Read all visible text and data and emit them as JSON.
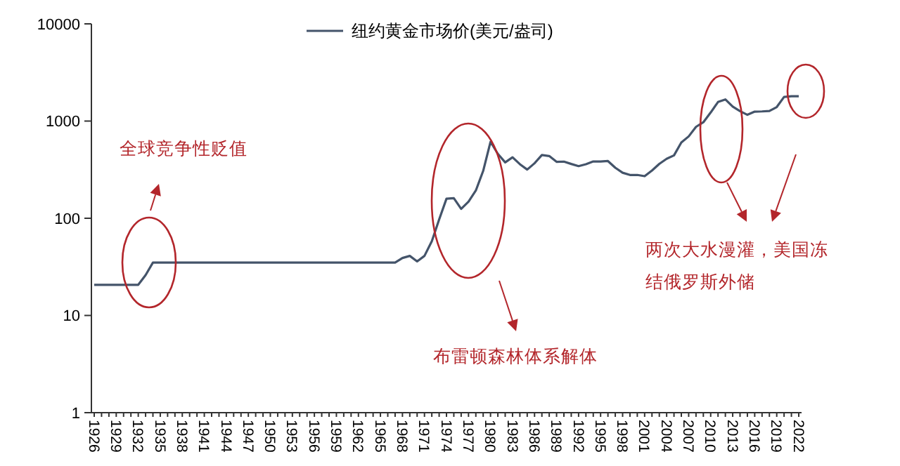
{
  "chart_data": {
    "type": "line",
    "legend": "top",
    "log": true,
    "grid": false,
    "marker": "none",
    "line_style": "solid",
    "xlim": [
      1926,
      2022
    ],
    "xticks": [
      1926,
      1929,
      1932,
      1935,
      1938,
      1941,
      1944,
      1947,
      1950,
      1953,
      1956,
      1959,
      1962,
      1965,
      1968,
      1971,
      1974,
      1977,
      1980,
      1983,
      1986,
      1989,
      1992,
      1995,
      1998,
      2001,
      2004,
      2007,
      2010,
      2013,
      2016,
      2019,
      2022
    ],
    "ylim": [
      1,
      10000
    ],
    "yticks": [
      1,
      10,
      100,
      1000,
      10000
    ],
    "x": [
      1926,
      1927,
      1928,
      1929,
      1930,
      1931,
      1932,
      1933,
      1934,
      1935,
      1936,
      1937,
      1938,
      1939,
      1940,
      1941,
      1942,
      1943,
      1944,
      1945,
      1946,
      1947,
      1948,
      1949,
      1950,
      1951,
      1952,
      1953,
      1954,
      1955,
      1956,
      1957,
      1958,
      1959,
      1960,
      1961,
      1962,
      1963,
      1964,
      1965,
      1966,
      1967,
      1968,
      1969,
      1970,
      1971,
      1972,
      1973,
      1974,
      1975,
      1976,
      1977,
      1978,
      1979,
      1980,
      1981,
      1982,
      1983,
      1984,
      1985,
      1986,
      1987,
      1988,
      1989,
      1990,
      1991,
      1992,
      1993,
      1994,
      1995,
      1996,
      1997,
      1998,
      1999,
      2000,
      2001,
      2002,
      2003,
      2004,
      2005,
      2006,
      2007,
      2008,
      2009,
      2010,
      2011,
      2012,
      2013,
      2014,
      2015,
      2016,
      2017,
      2018,
      2019,
      2020,
      2021,
      2022
    ],
    "series": [
      {
        "name": "纽约黄金市场价(美元/盎司)",
        "color": "#44546a",
        "values": [
          20.67,
          20.67,
          20.67,
          20.67,
          20.67,
          20.67,
          20.67,
          26,
          35,
          35,
          35,
          35,
          35,
          35,
          35,
          35,
          35,
          35,
          35,
          35,
          35,
          35,
          35,
          35,
          35,
          35,
          35,
          35,
          35,
          35,
          35,
          35,
          35,
          35,
          35,
          35,
          35,
          35,
          35,
          35,
          35,
          35,
          39,
          41,
          36,
          41,
          58,
          97,
          159,
          161,
          125,
          148,
          193,
          307,
          612,
          460,
          376,
          424,
          360,
          317,
          368,
          447,
          437,
          381,
          383,
          362,
          344,
          360,
          384,
          384,
          388,
          331,
          294,
          279,
          279,
          271,
          310,
          363,
          409,
          444,
          603,
          695,
          872,
          972,
          1225,
          1572,
          1669,
          1411,
          1266,
          1160,
          1251,
          1257,
          1268,
          1393,
          1770,
          1800,
          1800
        ]
      }
    ],
    "annotations": [
      "全球竞争性贬值",
      "布雷顿森林体系解体",
      "两次大水漫灌，美国冻结俄罗斯外储"
    ]
  }
}
